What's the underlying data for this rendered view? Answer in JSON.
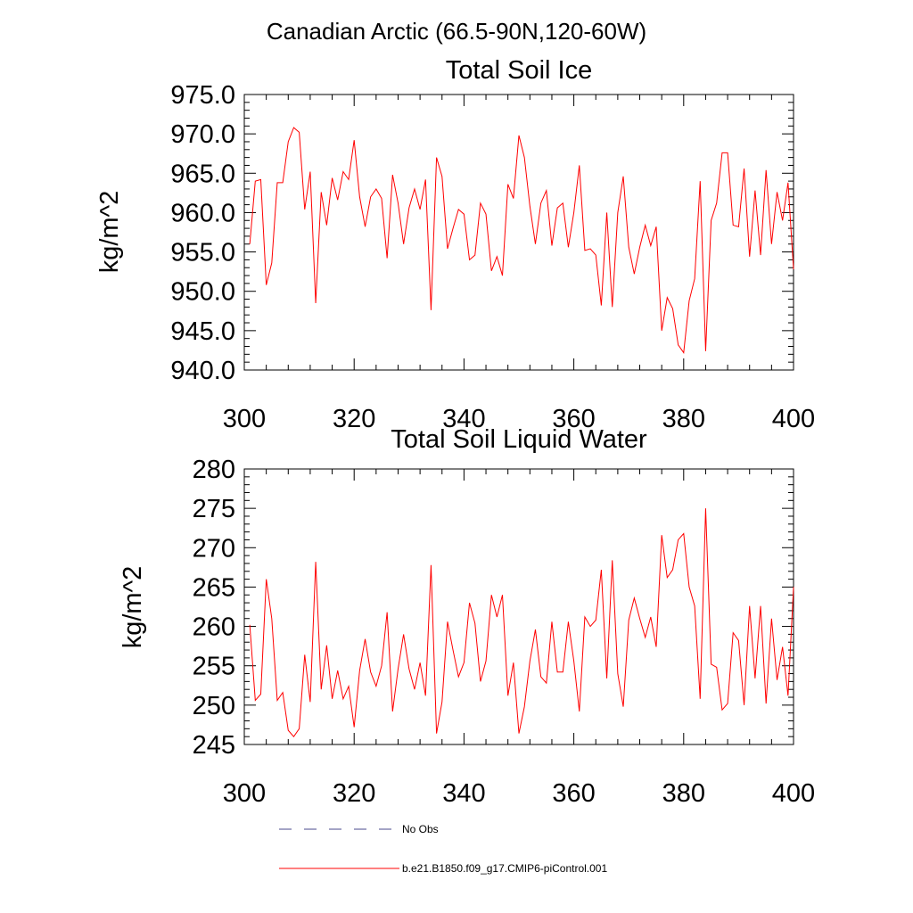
{
  "figure": {
    "suptitle": "Canadian Arctic (66.5-90N,120-60W)",
    "line_color": "#ff0000",
    "obs_color": "#4a4a8c"
  },
  "legend": {
    "entries": [
      {
        "label": "No Obs",
        "style": "dashed",
        "color": "#4a4a8c"
      },
      {
        "label": "b.e21.B1850.f09_g17.CMIP6-piControl.001",
        "style": "solid",
        "color": "#ff0000"
      }
    ]
  },
  "chart_data": [
    {
      "type": "line",
      "title": "Total Soil Ice",
      "xlabel": "",
      "ylabel": "kg/m^2",
      "xlim": [
        300,
        400
      ],
      "ylim": [
        940,
        975
      ],
      "xticks": [
        "300",
        "320",
        "340",
        "360",
        "380",
        "400"
      ],
      "yticks": [
        "940.0",
        "945.0",
        "950.0",
        "955.0",
        "960.0",
        "965.0",
        "970.0",
        "975.0"
      ],
      "x_start": 301,
      "x_step": 1,
      "series": [
        {
          "values": [
            956.0,
            964.0,
            964.2,
            950.8,
            953.6,
            963.8,
            963.8,
            969.0,
            970.8,
            970.2,
            960.4,
            965.2,
            948.5,
            962.6,
            958.4,
            964.4,
            961.6,
            965.2,
            964.2,
            969.2,
            962.0,
            958.2,
            962.0,
            963.0,
            961.8,
            954.2,
            964.8,
            961.2,
            956.0,
            960.6,
            963.0,
            960.4,
            964.2,
            947.6,
            967.0,
            964.6,
            955.4,
            958.0,
            960.4,
            959.8,
            954.0,
            954.6,
            961.2,
            959.8,
            952.6,
            954.4,
            952.0,
            963.6,
            961.8,
            969.8,
            967.0,
            960.8,
            956.0,
            961.2,
            962.8,
            955.8,
            960.6,
            961.2,
            955.6,
            960.0,
            966.0,
            955.2,
            955.4,
            954.6,
            948.2,
            960.0,
            948.0,
            960.0,
            964.6,
            955.6,
            952.2,
            955.6,
            958.4,
            955.8,
            958.2,
            945.0,
            949.2,
            947.8,
            943.2,
            942.2,
            948.8,
            951.6,
            964.0,
            942.4,
            959.0,
            961.2,
            967.6,
            967.6,
            958.4,
            958.2,
            965.6,
            954.4,
            962.8,
            954.6,
            965.4,
            956.0,
            962.6,
            959.0,
            963.8,
            952.8
          ]
        }
      ]
    },
    {
      "type": "line",
      "title": "Total Soil Liquid Water",
      "xlabel": "",
      "ylabel": "kg/m^2",
      "xlim": [
        300,
        400
      ],
      "ylim": [
        245,
        280
      ],
      "xticks": [
        "300",
        "320",
        "340",
        "360",
        "380",
        "400"
      ],
      "yticks": [
        "245",
        "250",
        "255",
        "260",
        "265",
        "270",
        "275",
        "280"
      ],
      "x_start": 301,
      "x_step": 1,
      "series": [
        {
          "values": [
            260.2,
            250.6,
            251.4,
            266.0,
            261.0,
            250.6,
            251.6,
            246.8,
            246.0,
            247.0,
            256.4,
            250.4,
            268.2,
            252.0,
            257.6,
            250.8,
            254.4,
            250.8,
            252.4,
            247.2,
            254.4,
            258.4,
            254.2,
            252.4,
            255.0,
            261.8,
            249.2,
            254.6,
            259.0,
            254.6,
            252.0,
            255.4,
            251.2,
            267.8,
            246.4,
            250.4,
            260.6,
            257.0,
            253.6,
            255.4,
            263.0,
            260.4,
            253.0,
            255.6,
            264.0,
            261.2,
            264.0,
            251.2,
            255.4,
            246.4,
            249.8,
            255.6,
            259.6,
            253.6,
            252.8,
            260.6,
            254.2,
            254.2,
            260.6,
            255.6,
            249.2,
            261.2,
            260.0,
            260.8,
            267.2,
            253.4,
            268.4,
            254.0,
            249.8,
            260.8,
            263.6,
            261.0,
            258.6,
            261.2,
            257.4,
            271.6,
            266.2,
            267.2,
            271.0,
            271.8,
            265.0,
            262.6,
            250.8,
            275.0,
            255.2,
            254.8,
            249.4,
            250.2,
            259.2,
            258.2,
            250.0,
            262.6,
            253.4,
            262.6,
            250.2,
            261.0,
            253.2,
            257.4,
            251.2,
            265.0
          ]
        }
      ]
    }
  ]
}
